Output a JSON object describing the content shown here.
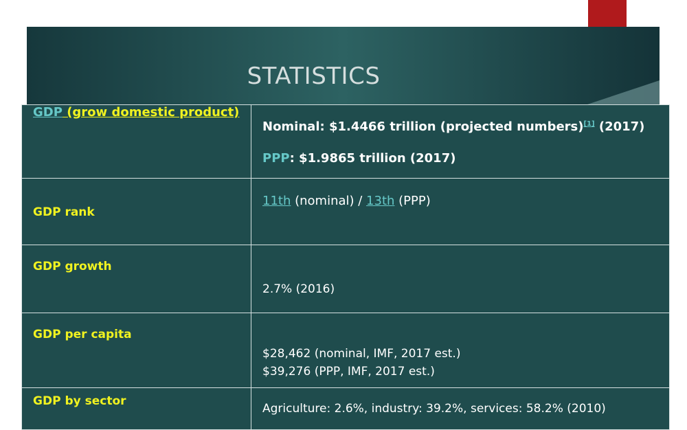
{
  "title": "STATISTICS",
  "rows": [
    {
      "label_link": "GDP",
      "label_rest": " (grow domestic product)",
      "nominal_label": "Nominal: $1.4466 trillion (projected numbers)",
      "nominal_ref": "[1]",
      "nominal_year": " (2017)",
      "ppp_link": "PPP",
      "ppp_value": ": $1.9865 trillion (2017)"
    },
    {
      "label": "GDP rank",
      "rank_nominal": "11th",
      "rank_nominal_text": " (nominal) / ",
      "rank_ppp": "13th",
      "rank_ppp_text": " (PPP)"
    },
    {
      "label": "GDP growth",
      "value": "2.7% (2016)"
    },
    {
      "label": "GDP per capita",
      "value1": "$28,462 (nominal, IMF, 2017 est.)",
      "value2": "$39,276 (PPP, IMF, 2017 est.)"
    },
    {
      "label": "GDP by sector",
      "value": "Agriculture: 2.6%, industry: 39.2%, services: 58.2% (2010)"
    }
  ],
  "colors": {
    "banner": "#1f4c4d",
    "label": "#f0f220",
    "link": "#66c8c8",
    "ribbon": "#b01a1c"
  }
}
